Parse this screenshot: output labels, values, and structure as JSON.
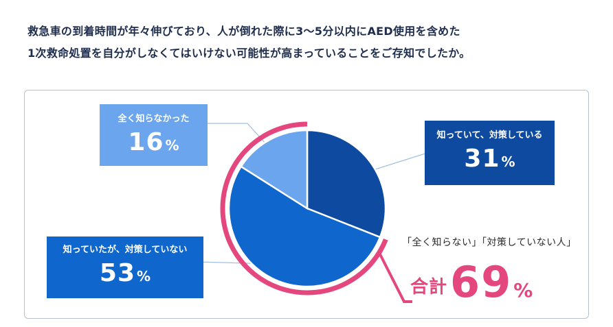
{
  "question": {
    "line1": "救急車の到着時間が年々伸びており、人が倒れた際に3～5分以内にAED使用を含めた",
    "line2": "1次救命処置を自分がしなくてはいけない可能性が高まっていることをご存知でしたか。"
  },
  "chart_data": {
    "type": "pie",
    "categories": [
      "知っていて、対策している",
      "知っていたが、対策していない",
      "全く知らなかった"
    ],
    "values": [
      31,
      53,
      16
    ],
    "unit": "%",
    "colors": [
      "#0d4aa0",
      "#0f66cd",
      "#6aa5ee"
    ],
    "highlight": {
      "caption": "「全く知らない」「対策していない人」",
      "label": "合計",
      "value": 69,
      "unit": "%",
      "color": "#e4477d"
    }
  }
}
